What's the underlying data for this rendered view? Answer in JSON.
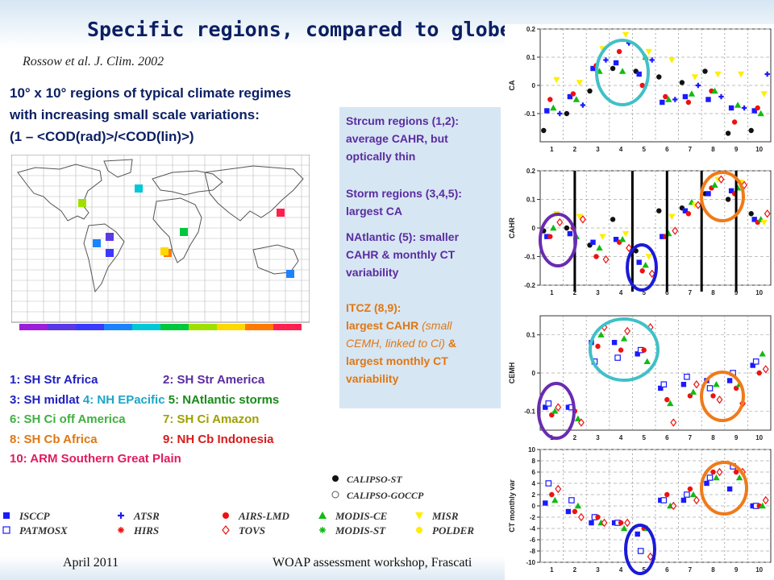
{
  "title": "Specific regions, compared to globe",
  "citation": "Rossow et al. J. Clim. 2002",
  "description": [
    "10° x 10° regions of typical climate regimes",
    "with increasing small scale variations:",
    "(1 – <COD(rad)>/<COD(lin)>)"
  ],
  "region_colors": [
    "#9b1fd9",
    "#5b38e6",
    "#3a3aff",
    "#1b83ff",
    "#00c8d6",
    "#00c83c",
    "#a0e000",
    "#ffd800",
    "#ff7a00",
    "#ff2050"
  ],
  "region_legend": [
    {
      "text": "1: SH Str Africa",
      "color": "#1f1fc0"
    },
    {
      "text": "2: SH Str America",
      "color": "#5a2ca0"
    },
    {
      "text": "3: SH midlat",
      "color": "#1f1fc0"
    },
    {
      "text": "4: NH EPacific",
      "color": "#1aa6c8"
    },
    {
      "text": "5: NAtlantic storms",
      "color": "#1a8a1a"
    },
    {
      "text": "6: SH Ci off America",
      "color": "#40b040"
    },
    {
      "text": "7: SH Ci Amazon",
      "color": "#a0a000"
    },
    {
      "text": "8: SH Cb Africa",
      "color": "#e07712"
    },
    {
      "text": "9: NH Cb Indonesia",
      "color": "#d81b1b"
    },
    {
      "text": "10: ARM Southern Great Plain",
      "color": "#e01b60"
    }
  ],
  "infobox": {
    "p1": [
      "Strcum regions (1,2):",
      "average CAHR,  but",
      "optically thin"
    ],
    "p2": [
      "Storm regions (3,4,5):",
      "largest CA"
    ],
    "p3": [
      "NAtlantic (5): smaller",
      "CAHR & monthly CT",
      "variability"
    ],
    "p4": [
      "ITCZ (8,9):",
      "largest CAHR",
      "(small",
      "CEMH, linked to Ci)",
      "&",
      "largest monthly CT",
      "variability"
    ]
  },
  "instruments": {
    "calipso": [
      "CALIPSO-ST",
      "CALIPSO-GOCCP"
    ],
    "names": [
      "ISCCP",
      "PATMOSX",
      "ATSR",
      "HIRS",
      "AIRS-LMD",
      "TOVS",
      "MODIS-CE",
      "MODIS-ST",
      "MISR",
      "POLDER"
    ],
    "colors": {
      "blue": "#1a1aff",
      "red": "#ee1111",
      "green": "#11bb11",
      "yellow": "#ffee00",
      "black": "#111111"
    }
  },
  "footer": {
    "left": "April 2011",
    "center": "WOAP assessment workshop, Frascati"
  },
  "chart_data": [
    {
      "type": "scatter",
      "ylabel": "CA",
      "categories": [
        "1",
        "2",
        "3",
        "4",
        "5",
        "6",
        "7",
        "8",
        "9",
        "10"
      ],
      "ylim": [
        -0.2,
        0.2
      ],
      "yticks": [
        -0.1,
        0,
        0.1,
        0.2
      ],
      "series": [
        {
          "name": "CALIPSO-ST",
          "values": [
            -0.16,
            -0.1,
            -0.02,
            0.06,
            0.05,
            0.03,
            0.01,
            0.05,
            -0.17,
            -0.16
          ]
        },
        {
          "name": "ISCCP",
          "values": [
            -0.09,
            -0.04,
            0.06,
            0.08,
            0.04,
            -0.06,
            -0.04,
            -0.05,
            -0.08,
            -0.09
          ]
        },
        {
          "name": "AIRS-LMD",
          "values": [
            -0.05,
            -0.03,
            0.07,
            0.12,
            0.0,
            -0.04,
            -0.06,
            -0.02,
            -0.13,
            -0.08
          ]
        },
        {
          "name": "MODIS-CE",
          "values": [
            -0.08,
            -0.05,
            0.05,
            0.05,
            0.1,
            -0.05,
            -0.03,
            -0.02,
            -0.07,
            -0.1
          ]
        },
        {
          "name": "MISR",
          "values": [
            0.02,
            0.01,
            0.13,
            0.18,
            0.12,
            0.09,
            0.03,
            0.04,
            0.04,
            -0.03
          ]
        },
        {
          "name": "ATSR",
          "values": [
            -0.1,
            -0.07,
            0.09,
            0.15,
            0.09,
            -0.05,
            0.0,
            -0.04,
            -0.08,
            0.04
          ]
        }
      ]
    },
    {
      "type": "scatter",
      "ylabel": "CAHR",
      "categories": [
        "1",
        "2",
        "3",
        "4",
        "5",
        "6",
        "7",
        "8",
        "9",
        "10"
      ],
      "ylim": [
        -0.2,
        0.2
      ],
      "yticks": [
        -0.2,
        -0.1,
        0,
        0.1,
        0.2
      ],
      "series": [
        {
          "name": "CALIPSO-ST",
          "values": [
            -0.01,
            0.0,
            -0.06,
            0.03,
            -0.08,
            0.06,
            0.07,
            0.12,
            0.1,
            0.05
          ]
        },
        {
          "name": "ISCCP",
          "values": [
            -0.03,
            -0.02,
            -0.05,
            -0.04,
            -0.12,
            -0.03,
            0.06,
            0.12,
            0.13,
            0.03
          ]
        },
        {
          "name": "AIRS-LMD",
          "values": [
            -0.03,
            0.0,
            -0.1,
            -0.05,
            -0.15,
            -0.03,
            0.05,
            0.14,
            0.12,
            0.02
          ]
        },
        {
          "name": "MODIS-CE",
          "values": [
            0.0,
            -0.03,
            -0.07,
            -0.04,
            -0.13,
            -0.02,
            0.09,
            0.15,
            0.14,
            0.03
          ]
        },
        {
          "name": "MISR",
          "values": [
            0.05,
            0.04,
            -0.03,
            -0.02,
            -0.1,
            0.04,
            0.08,
            0.17,
            0.16,
            0.02
          ]
        },
        {
          "name": "TOVS",
          "values": [
            0.02,
            0.03,
            -0.11,
            -0.07,
            -0.16,
            -0.01,
            0.08,
            0.17,
            0.15,
            0.05
          ]
        }
      ]
    },
    {
      "type": "scatter",
      "ylabel": "CEMH",
      "categories": [
        "1",
        "2",
        "3",
        "4",
        "5",
        "6",
        "7",
        "8",
        "9",
        "10"
      ],
      "ylim": [
        -0.15,
        0.15
      ],
      "yticks": [
        -0.1,
        0,
        0.1
      ],
      "series": [
        {
          "name": "ISCCP",
          "values": [
            -0.09,
            -0.09,
            0.08,
            0.08,
            0.05,
            -0.04,
            -0.03,
            -0.02,
            -0.02,
            0.02
          ]
        },
        {
          "name": "PATMOSX",
          "values": [
            -0.08,
            -0.09,
            0.03,
            0.04,
            0.06,
            -0.03,
            -0.01,
            -0.04,
            0.0,
            0.03
          ]
        },
        {
          "name": "AIRS-LMD",
          "values": [
            -0.11,
            -0.1,
            0.07,
            0.06,
            0.06,
            -0.07,
            -0.06,
            -0.06,
            -0.04,
            0.0
          ]
        },
        {
          "name": "MODIS-CE",
          "values": [
            -0.1,
            -0.12,
            0.1,
            0.09,
            0.03,
            -0.08,
            -0.05,
            -0.03,
            -0.03,
            0.05
          ]
        },
        {
          "name": "TOVS",
          "values": [
            -0.09,
            -0.13,
            0.12,
            0.11,
            0.12,
            -0.13,
            -0.03,
            -0.07,
            -0.08,
            0.01
          ]
        }
      ]
    },
    {
      "type": "scatter",
      "ylabel": "CT monthly var",
      "categories": [
        "1",
        "2",
        "3",
        "4",
        "5",
        "6",
        "7",
        "8",
        "9",
        "10"
      ],
      "ylim": [
        -10,
        10
      ],
      "yticks": [
        -10,
        -8,
        -6,
        -4,
        -2,
        0,
        2,
        4,
        6,
        8,
        10
      ],
      "series": [
        {
          "name": "ISCCP",
          "values": [
            0.5,
            -1,
            -3,
            -3,
            -5,
            1,
            1,
            4,
            3,
            0
          ]
        },
        {
          "name": "PATMOSX",
          "values": [
            4,
            1,
            -2,
            -3,
            -8,
            1,
            2,
            5,
            7,
            0
          ]
        },
        {
          "name": "AIRS-LMD",
          "values": [
            2,
            -1,
            -2,
            -3,
            -4,
            2,
            3,
            6,
            6,
            0
          ]
        },
        {
          "name": "MODIS-CE",
          "values": [
            1,
            0,
            -3,
            -4,
            -4,
            0,
            2,
            5,
            5,
            0
          ]
        },
        {
          "name": "TOVS",
          "values": [
            3,
            -2,
            -3,
            -3,
            -9,
            0,
            1,
            6,
            6,
            1
          ]
        }
      ]
    }
  ]
}
